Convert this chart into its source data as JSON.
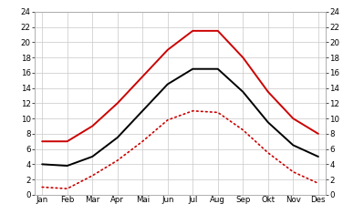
{
  "months": [
    "Jan",
    "Feb",
    "Mar",
    "Apr",
    "Mai",
    "Jun",
    "Jul",
    "Aug",
    "Sep",
    "Okt",
    "Nov",
    "Des"
  ],
  "red_solid": [
    7.0,
    7.0,
    9.0,
    12.0,
    15.5,
    19.0,
    21.5,
    21.5,
    18.0,
    13.5,
    10.0,
    8.0
  ],
  "black_solid": [
    4.0,
    3.8,
    5.0,
    7.5,
    11.0,
    14.5,
    16.5,
    16.5,
    13.5,
    9.5,
    6.5,
    5.0
  ],
  "red_dotted": [
    1.0,
    0.8,
    2.5,
    4.5,
    7.0,
    9.8,
    11.0,
    10.8,
    8.5,
    5.5,
    3.0,
    1.5
  ],
  "ylim": [
    0,
    24
  ],
  "yticks": [
    0,
    2,
    4,
    6,
    8,
    10,
    12,
    14,
    16,
    18,
    20,
    22,
    24
  ],
  "red_solid_color": "#cc0000",
  "black_solid_color": "#000000",
  "red_dotted_color": "#cc0000",
  "bg_color": "#ffffff",
  "grid_color": "#c8c8c8",
  "top_bar_color": "#55ccee",
  "fig_bg": "#ffffff"
}
